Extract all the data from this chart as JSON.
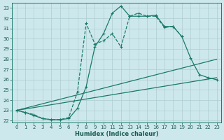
{
  "xlabel": "Humidex (Indice chaleur)",
  "bg_color": "#cde8ec",
  "grid_color": "#aecdd2",
  "line_color": "#1a7a6a",
  "xlim": [
    -0.5,
    23.5
  ],
  "ylim": [
    21.8,
    33.5
  ],
  "xticks": [
    0,
    1,
    2,
    3,
    4,
    5,
    6,
    7,
    8,
    9,
    10,
    11,
    12,
    13,
    14,
    15,
    16,
    17,
    18,
    19,
    20,
    21,
    22,
    23
  ],
  "yticks": [
    22,
    23,
    24,
    25,
    26,
    27,
    28,
    29,
    30,
    31,
    32,
    33
  ],
  "series": [
    {
      "x": [
        0,
        1,
        2,
        3,
        4,
        5,
        6,
        7,
        8,
        9,
        10,
        11,
        12,
        13,
        14,
        15,
        16,
        17,
        18,
        19
      ],
      "y": [
        23.0,
        22.8,
        22.6,
        22.2,
        22.1,
        22.1,
        22.3,
        24.8,
        31.5,
        29.5,
        29.8,
        30.5,
        29.2,
        32.2,
        32.5,
        32.2,
        32.2,
        31.1,
        31.2,
        30.2
      ],
      "linestyle": "--",
      "marker": true
    },
    {
      "x": [
        0,
        1,
        2,
        3,
        4,
        5,
        6,
        7,
        8,
        9,
        10,
        11,
        12,
        13,
        14,
        15,
        16,
        17,
        18,
        19,
        20,
        21,
        22,
        23
      ],
      "y": [
        23.0,
        22.8,
        22.5,
        22.2,
        22.1,
        22.1,
        22.2,
        23.2,
        25.3,
        29.2,
        30.5,
        32.5,
        33.2,
        32.2,
        32.2,
        32.2,
        32.3,
        31.2,
        31.2,
        30.2,
        28.1,
        26.5,
        26.2,
        26.0
      ],
      "linestyle": "-",
      "marker": true
    },
    {
      "x": [
        0,
        23
      ],
      "y": [
        23.0,
        28.0
      ],
      "linestyle": "-",
      "marker": false
    },
    {
      "x": [
        0,
        23
      ],
      "y": [
        23.0,
        26.2
      ],
      "linestyle": "-",
      "marker": false
    }
  ]
}
